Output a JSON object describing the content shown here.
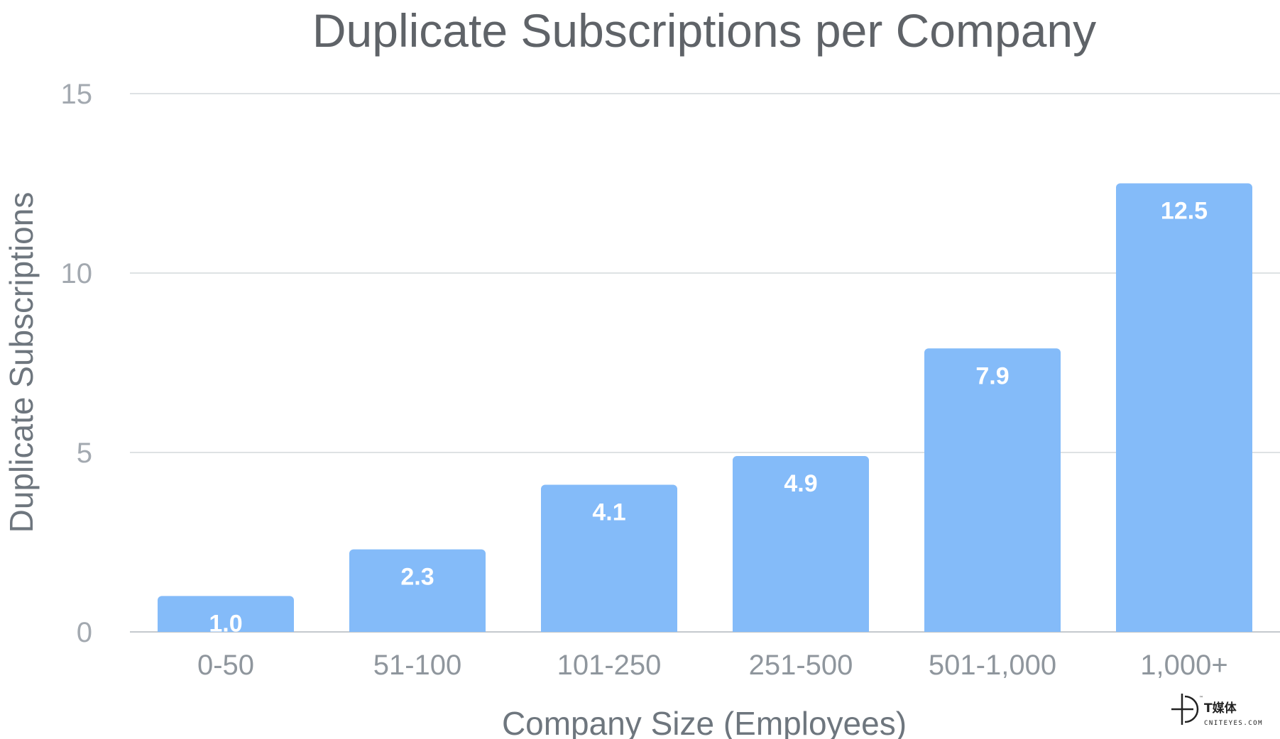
{
  "chart_data": {
    "type": "bar",
    "title": "Duplicate Subscriptions per Company",
    "xlabel": "Company Size (Employees)",
    "ylabel": "Duplicate Subscriptions",
    "categories": [
      "0-50",
      "51-100",
      "101-250",
      "251-500",
      "501-1,000",
      "1,000+"
    ],
    "values": [
      1.0,
      2.3,
      4.1,
      4.9,
      7.9,
      12.5
    ],
    "data_labels": [
      "1.0",
      "2.3",
      "4.1",
      "4.9",
      "7.9",
      "12.5"
    ],
    "ylim": [
      0,
      15
    ],
    "yticks": [
      0,
      5,
      10,
      15
    ],
    "ytick_labels": [
      "0",
      "5",
      "10",
      "15"
    ],
    "grid": true,
    "legend": "none",
    "bar_color": "#84bbf9"
  },
  "watermark": {
    "main_text": "T媒体",
    "sub_text": "CNITEYES.COM",
    "tm": "™"
  }
}
